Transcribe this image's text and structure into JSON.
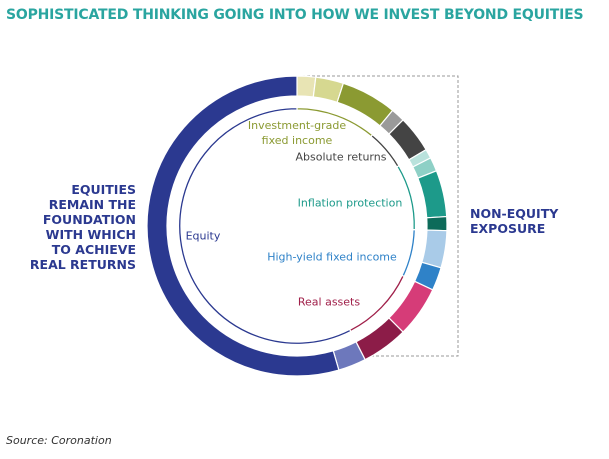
{
  "chart_data": {
    "type": "donut",
    "title": "SOPHISTICATED THINKING GOING INTO HOW WE INVEST BEYOND EQUITIES",
    "categories": [
      null,
      null,
      null,
      null,
      null,
      null,
      null,
      null,
      null,
      null,
      null,
      null,
      null,
      null,
      null
    ],
    "values": [
      2,
      3,
      6,
      1.5,
      4,
      1,
      1.5,
      5,
      1.5,
      4,
      2.5,
      5.5,
      5,
      3,
      54.5
    ],
    "colors": [
      "#e8e4b4",
      "#d6d890",
      "#8b9a32",
      "#9a9a9a",
      "#444444",
      "#b9e2dc",
      "#8ed0c6",
      "#1d9a8a",
      "#0d6b5a",
      "#a9cbe8",
      "#2f82c8",
      "#d63c78",
      "#8c1c48",
      "#6d78bc",
      "#2b3990"
    ],
    "groups": {
      "categories": [
        "Investment-grade fixed income",
        "Absolute returns",
        "Inflation protection",
        "High-yield fixed income",
        "Real assets",
        "Equity"
      ],
      "values": [
        11,
        5.5,
        9,
        6.5,
        10.5,
        57.5
      ],
      "colors": [
        "#8b9a32",
        "#444444",
        "#1d9a8a",
        "#2f82c8",
        "#a0204a",
        "#2b3990"
      ]
    },
    "left_label": [
      "EQUITIES",
      "REMAIN THE",
      "FOUNDATION",
      "WITH WHICH",
      "TO ACHIEVE",
      "REAL RETURNS"
    ],
    "right_label": [
      "NON-EQUITY",
      "EXPOSURE"
    ],
    "source": "Source: Coronation"
  }
}
